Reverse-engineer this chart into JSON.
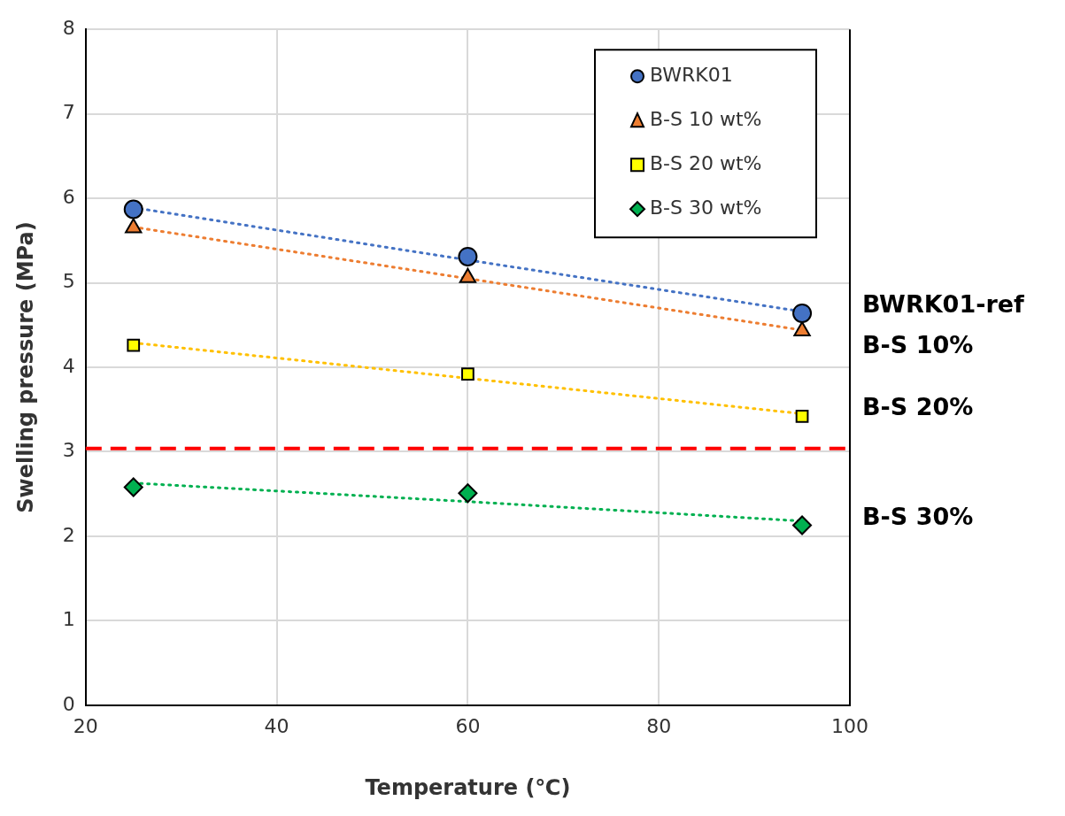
{
  "chart_data": {
    "type": "scatter",
    "xlabel": "Temperature (℃)",
    "ylabel": "Swelling pressure (MPa)",
    "x": [
      25,
      60,
      95
    ],
    "xlim": [
      20,
      100
    ],
    "xticks": [
      20,
      40,
      60,
      80,
      100
    ],
    "ylim": [
      0,
      8
    ],
    "yticks": [
      0,
      1,
      2,
      3,
      4,
      5,
      6,
      7,
      8
    ],
    "grid": true,
    "legend": "top right",
    "series": [
      {
        "name": "BWRK01",
        "color": "#4472c4",
        "marker": "circle",
        "values": [
          5.87,
          5.31,
          4.64
        ]
      },
      {
        "name": "B-S 10 wt%",
        "color": "#ed7d31",
        "marker": "triangle",
        "values": [
          5.65,
          5.06,
          4.43
        ]
      },
      {
        "name": "B-S 20 wt%",
        "color": "#ffff00",
        "marker": "square",
        "values": [
          4.26,
          3.92,
          3.42
        ]
      },
      {
        "name": "B-S 30 wt%",
        "color": "#00b050",
        "marker": "diamond",
        "values": [
          2.58,
          2.51,
          2.13
        ]
      },
      {
        "type": "line",
        "color": "#4472c4",
        "marker": "none",
        "line_style": "dotted",
        "values": [
          5.89,
          5.27,
          4.66
        ]
      },
      {
        "type": "line",
        "color": "#ed7d31",
        "marker": "none",
        "line_style": "dotted",
        "values": [
          5.66,
          5.05,
          4.44
        ]
      },
      {
        "type": "line",
        "color": "#ffc000",
        "marker": "none",
        "line_style": "dotted",
        "values": [
          4.29,
          3.87,
          3.45
        ]
      },
      {
        "type": "line",
        "color": "#00b050",
        "marker": "none",
        "line_style": "dotted",
        "values": [
          2.63,
          2.41,
          2.18
        ]
      }
    ],
    "ref_lines": [
      {
        "axis": "y",
        "value": 3.04,
        "color": "#ff0000",
        "line_style": "dashed"
      }
    ],
    "annotations": [
      "BWRK01-ref",
      "B-S 10%",
      "B-S 20%",
      "B-S 30%"
    ]
  }
}
